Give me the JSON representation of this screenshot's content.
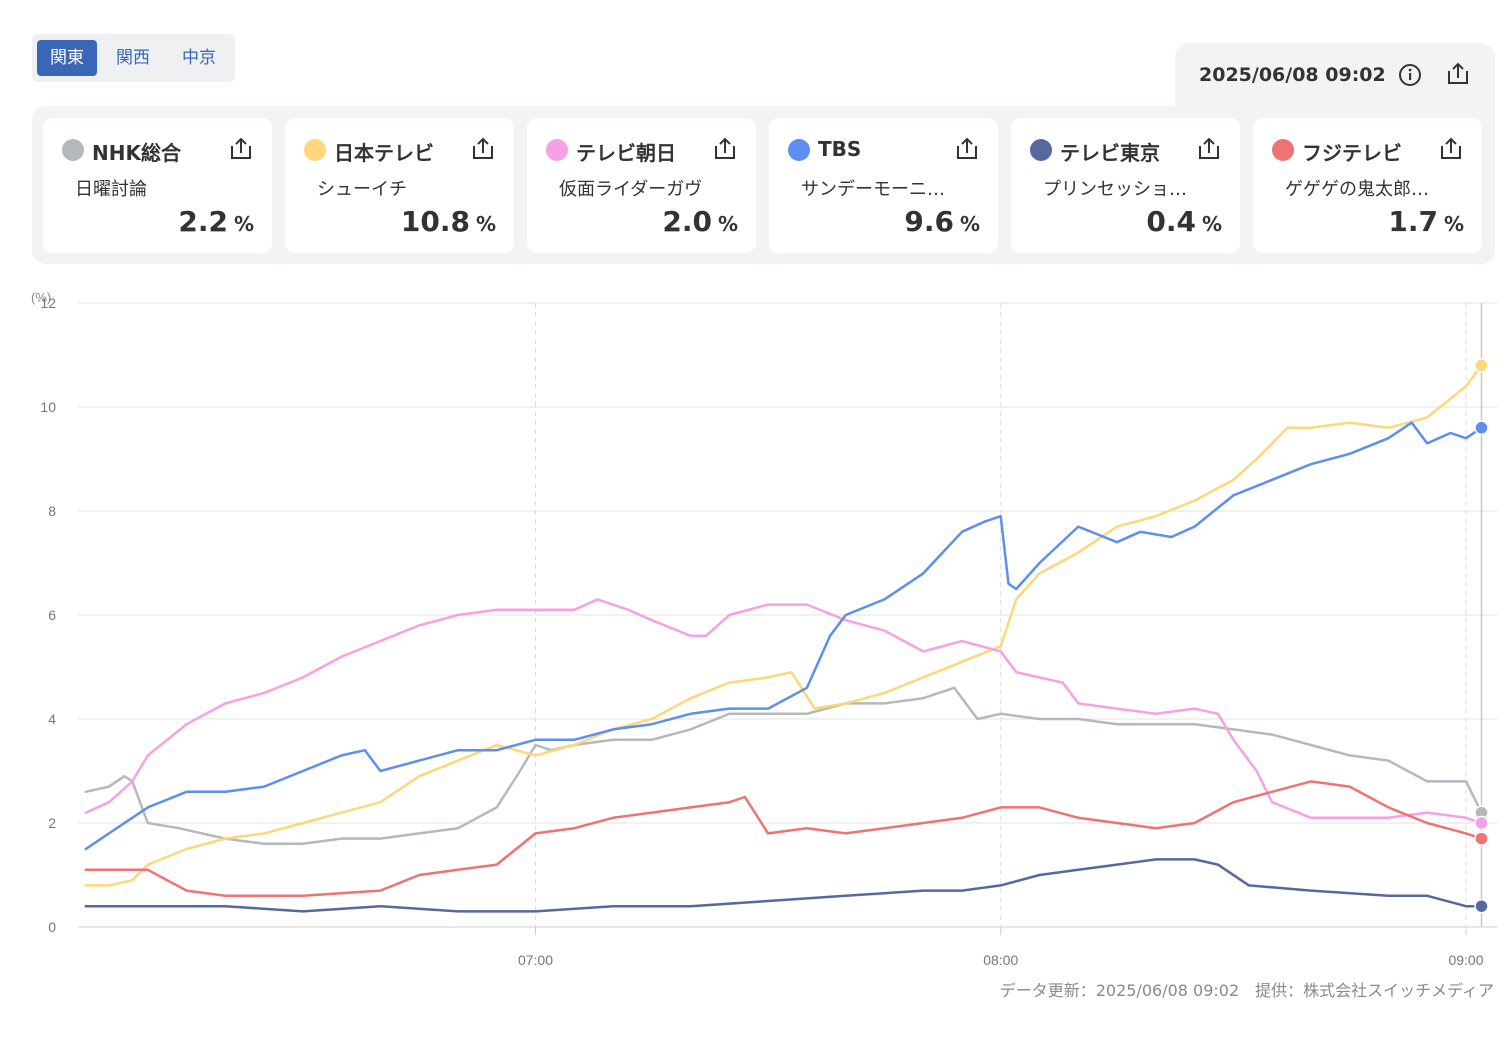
{
  "region_tabs": [
    {
      "label": "関東",
      "active": true
    },
    {
      "label": "関西",
      "active": false
    },
    {
      "label": "中京",
      "active": false
    }
  ],
  "header": {
    "datetime": "2025/06/08 09:02",
    "info_icon": "info-icon",
    "share_icon": "share-icon"
  },
  "channels": [
    {
      "name": "NHK総合",
      "program": "日曜討論",
      "rating": "2.2",
      "unit": "%",
      "color": "#b5b8bd"
    },
    {
      "name": "日本テレビ",
      "program": "シューイチ",
      "rating": "10.8",
      "unit": "%",
      "color": "#fdd77a"
    },
    {
      "name": "テレビ朝日",
      "program": "仮面ライダーガヴ",
      "rating": "2.0",
      "unit": "%",
      "color": "#f7a1e4"
    },
    {
      "name": "TBS",
      "program": "サンデーモーニ…",
      "rating": "9.6",
      "unit": "%",
      "color": "#5d8ef0"
    },
    {
      "name": "テレビ東京",
      "program": "プリンセッショ…",
      "rating": "0.4",
      "unit": "%",
      "color": "#57689f"
    },
    {
      "name": "フジテレビ",
      "program": "ゲゲゲの鬼太郎…",
      "rating": "1.7",
      "unit": "%",
      "color": "#ee7373"
    }
  ],
  "chart_data": {
    "type": "line",
    "ylabel": "(%)",
    "ylim": [
      0,
      12
    ],
    "yticks": [
      "0",
      "2",
      "4",
      "6",
      "8",
      "10",
      "12"
    ],
    "xlim": [
      "06:01",
      "09:04"
    ],
    "xticks": [
      "07:00",
      "08:00",
      "09:00"
    ],
    "grid": true,
    "series": [
      {
        "name": "NHK総合",
        "color": "#b5b8bd",
        "points": [
          [
            "06:02",
            2.6
          ],
          [
            "06:05",
            2.7
          ],
          [
            "06:07",
            2.9
          ],
          [
            "06:08",
            2.8
          ],
          [
            "06:10",
            2.0
          ],
          [
            "06:14",
            1.9
          ],
          [
            "06:20",
            1.7
          ],
          [
            "06:25",
            1.6
          ],
          [
            "06:30",
            1.6
          ],
          [
            "06:35",
            1.7
          ],
          [
            "06:40",
            1.7
          ],
          [
            "06:45",
            1.8
          ],
          [
            "06:50",
            1.9
          ],
          [
            "06:55",
            2.3
          ],
          [
            "06:58",
            3.0
          ],
          [
            "07:00",
            3.5
          ],
          [
            "07:02",
            3.4
          ],
          [
            "07:05",
            3.5
          ],
          [
            "07:10",
            3.6
          ],
          [
            "07:15",
            3.6
          ],
          [
            "07:20",
            3.8
          ],
          [
            "07:25",
            4.1
          ],
          [
            "07:30",
            4.1
          ],
          [
            "07:35",
            4.1
          ],
          [
            "07:40",
            4.3
          ],
          [
            "07:45",
            4.3
          ],
          [
            "07:50",
            4.4
          ],
          [
            "07:54",
            4.6
          ],
          [
            "07:57",
            4.0
          ],
          [
            "08:00",
            4.1
          ],
          [
            "08:05",
            4.0
          ],
          [
            "08:10",
            4.0
          ],
          [
            "08:15",
            3.9
          ],
          [
            "08:20",
            3.9
          ],
          [
            "08:25",
            3.9
          ],
          [
            "08:30",
            3.8
          ],
          [
            "08:35",
            3.7
          ],
          [
            "08:40",
            3.5
          ],
          [
            "08:45",
            3.3
          ],
          [
            "08:50",
            3.2
          ],
          [
            "08:55",
            2.8
          ],
          [
            "09:00",
            2.8
          ],
          [
            "09:02",
            2.2
          ]
        ]
      },
      {
        "name": "日本テレビ",
        "color": "#fdd77a",
        "points": [
          [
            "06:02",
            0.8
          ],
          [
            "06:05",
            0.8
          ],
          [
            "06:08",
            0.9
          ],
          [
            "06:10",
            1.2
          ],
          [
            "06:15",
            1.5
          ],
          [
            "06:20",
            1.7
          ],
          [
            "06:25",
            1.8
          ],
          [
            "06:30",
            2.0
          ],
          [
            "06:35",
            2.2
          ],
          [
            "06:40",
            2.4
          ],
          [
            "06:45",
            2.9
          ],
          [
            "06:50",
            3.2
          ],
          [
            "06:55",
            3.5
          ],
          [
            "07:00",
            3.3
          ],
          [
            "07:05",
            3.5
          ],
          [
            "07:10",
            3.8
          ],
          [
            "07:15",
            4.0
          ],
          [
            "07:20",
            4.4
          ],
          [
            "07:25",
            4.7
          ],
          [
            "07:30",
            4.8
          ],
          [
            "07:33",
            4.9
          ],
          [
            "07:36",
            4.2
          ],
          [
            "07:40",
            4.3
          ],
          [
            "07:45",
            4.5
          ],
          [
            "07:50",
            4.8
          ],
          [
            "07:55",
            5.1
          ],
          [
            "08:00",
            5.4
          ],
          [
            "08:02",
            6.3
          ],
          [
            "08:05",
            6.8
          ],
          [
            "08:10",
            7.2
          ],
          [
            "08:15",
            7.7
          ],
          [
            "08:20",
            7.9
          ],
          [
            "08:25",
            8.2
          ],
          [
            "08:30",
            8.6
          ],
          [
            "08:33",
            9.0
          ],
          [
            "08:37",
            9.6
          ],
          [
            "08:40",
            9.6
          ],
          [
            "08:45",
            9.7
          ],
          [
            "08:50",
            9.6
          ],
          [
            "08:55",
            9.8
          ],
          [
            "09:00",
            10.4
          ],
          [
            "09:02",
            10.8
          ]
        ]
      },
      {
        "name": "テレビ朝日",
        "color": "#f7a1e4",
        "points": [
          [
            "06:02",
            2.2
          ],
          [
            "06:05",
            2.4
          ],
          [
            "06:08",
            2.8
          ],
          [
            "06:10",
            3.3
          ],
          [
            "06:15",
            3.9
          ],
          [
            "06:20",
            4.3
          ],
          [
            "06:25",
            4.5
          ],
          [
            "06:30",
            4.8
          ],
          [
            "06:35",
            5.2
          ],
          [
            "06:40",
            5.5
          ],
          [
            "06:45",
            5.8
          ],
          [
            "06:50",
            6.0
          ],
          [
            "06:55",
            6.1
          ],
          [
            "07:00",
            6.1
          ],
          [
            "07:05",
            6.1
          ],
          [
            "07:08",
            6.3
          ],
          [
            "07:12",
            6.1
          ],
          [
            "07:15",
            5.9
          ],
          [
            "07:20",
            5.6
          ],
          [
            "07:22",
            5.6
          ],
          [
            "07:25",
            6.0
          ],
          [
            "07:30",
            6.2
          ],
          [
            "07:35",
            6.2
          ],
          [
            "07:40",
            5.9
          ],
          [
            "07:45",
            5.7
          ],
          [
            "07:50",
            5.3
          ],
          [
            "07:55",
            5.5
          ],
          [
            "08:00",
            5.3
          ],
          [
            "08:02",
            4.9
          ],
          [
            "08:05",
            4.8
          ],
          [
            "08:08",
            4.7
          ],
          [
            "08:10",
            4.3
          ],
          [
            "08:15",
            4.2
          ],
          [
            "08:20",
            4.1
          ],
          [
            "08:25",
            4.2
          ],
          [
            "08:28",
            4.1
          ],
          [
            "08:30",
            3.6
          ],
          [
            "08:33",
            3.0
          ],
          [
            "08:35",
            2.4
          ],
          [
            "08:40",
            2.1
          ],
          [
            "08:45",
            2.1
          ],
          [
            "08:50",
            2.1
          ],
          [
            "08:55",
            2.2
          ],
          [
            "09:00",
            2.1
          ],
          [
            "09:02",
            2.0
          ]
        ]
      },
      {
        "name": "TBS",
        "color": "#5d8ef0",
        "points": [
          [
            "06:02",
            1.5
          ],
          [
            "06:05",
            1.8
          ],
          [
            "06:08",
            2.1
          ],
          [
            "06:10",
            2.3
          ],
          [
            "06:15",
            2.6
          ],
          [
            "06:20",
            2.6
          ],
          [
            "06:25",
            2.7
          ],
          [
            "06:30",
            3.0
          ],
          [
            "06:35",
            3.3
          ],
          [
            "06:38",
            3.4
          ],
          [
            "06:40",
            3.0
          ],
          [
            "06:45",
            3.2
          ],
          [
            "06:50",
            3.4
          ],
          [
            "06:55",
            3.4
          ],
          [
            "07:00",
            3.6
          ],
          [
            "07:05",
            3.6
          ],
          [
            "07:10",
            3.8
          ],
          [
            "07:15",
            3.9
          ],
          [
            "07:20",
            4.1
          ],
          [
            "07:25",
            4.2
          ],
          [
            "07:30",
            4.2
          ],
          [
            "07:35",
            4.6
          ],
          [
            "07:38",
            5.6
          ],
          [
            "07:40",
            6.0
          ],
          [
            "07:45",
            6.3
          ],
          [
            "07:50",
            6.8
          ],
          [
            "07:55",
            7.6
          ],
          [
            "07:58",
            7.8
          ],
          [
            "08:00",
            7.9
          ],
          [
            "08:01",
            6.6
          ],
          [
            "08:02",
            6.5
          ],
          [
            "08:05",
            7.0
          ],
          [
            "08:10",
            7.7
          ],
          [
            "08:15",
            7.4
          ],
          [
            "08:18",
            7.6
          ],
          [
            "08:22",
            7.5
          ],
          [
            "08:25",
            7.7
          ],
          [
            "08:30",
            8.3
          ],
          [
            "08:35",
            8.6
          ],
          [
            "08:40",
            8.9
          ],
          [
            "08:45",
            9.1
          ],
          [
            "08:50",
            9.4
          ],
          [
            "08:53",
            9.7
          ],
          [
            "08:55",
            9.3
          ],
          [
            "08:58",
            9.5
          ],
          [
            "09:00",
            9.4
          ],
          [
            "09:02",
            9.6
          ]
        ]
      },
      {
        "name": "テレビ東京",
        "color": "#57689f",
        "points": [
          [
            "06:02",
            0.4
          ],
          [
            "06:10",
            0.4
          ],
          [
            "06:20",
            0.4
          ],
          [
            "06:30",
            0.3
          ],
          [
            "06:40",
            0.4
          ],
          [
            "06:50",
            0.3
          ],
          [
            "06:55",
            0.3
          ],
          [
            "07:00",
            0.3
          ],
          [
            "07:10",
            0.4
          ],
          [
            "07:20",
            0.4
          ],
          [
            "07:30",
            0.5
          ],
          [
            "07:40",
            0.6
          ],
          [
            "07:50",
            0.7
          ],
          [
            "07:55",
            0.7
          ],
          [
            "08:00",
            0.8
          ],
          [
            "08:05",
            1.0
          ],
          [
            "08:10",
            1.1
          ],
          [
            "08:15",
            1.2
          ],
          [
            "08:20",
            1.3
          ],
          [
            "08:25",
            1.3
          ],
          [
            "08:28",
            1.2
          ],
          [
            "08:32",
            0.8
          ],
          [
            "08:40",
            0.7
          ],
          [
            "08:50",
            0.6
          ],
          [
            "08:55",
            0.6
          ],
          [
            "09:00",
            0.4
          ],
          [
            "09:02",
            0.4
          ]
        ]
      },
      {
        "name": "フジテレビ",
        "color": "#ee7373",
        "points": [
          [
            "06:02",
            1.1
          ],
          [
            "06:05",
            1.1
          ],
          [
            "06:10",
            1.1
          ],
          [
            "06:15",
            0.7
          ],
          [
            "06:20",
            0.6
          ],
          [
            "06:30",
            0.6
          ],
          [
            "06:40",
            0.7
          ],
          [
            "06:45",
            1.0
          ],
          [
            "06:50",
            1.1
          ],
          [
            "06:55",
            1.2
          ],
          [
            "07:00",
            1.8
          ],
          [
            "07:05",
            1.9
          ],
          [
            "07:10",
            2.1
          ],
          [
            "07:15",
            2.2
          ],
          [
            "07:20",
            2.3
          ],
          [
            "07:25",
            2.4
          ],
          [
            "07:27",
            2.5
          ],
          [
            "07:30",
            1.8
          ],
          [
            "07:35",
            1.9
          ],
          [
            "07:40",
            1.8
          ],
          [
            "07:45",
            1.9
          ],
          [
            "07:50",
            2.0
          ],
          [
            "07:55",
            2.1
          ],
          [
            "08:00",
            2.3
          ],
          [
            "08:05",
            2.3
          ],
          [
            "08:10",
            2.1
          ],
          [
            "08:15",
            2.0
          ],
          [
            "08:20",
            1.9
          ],
          [
            "08:25",
            2.0
          ],
          [
            "08:30",
            2.4
          ],
          [
            "08:35",
            2.6
          ],
          [
            "08:40",
            2.8
          ],
          [
            "08:45",
            2.7
          ],
          [
            "08:50",
            2.3
          ],
          [
            "08:55",
            2.0
          ],
          [
            "09:00",
            1.8
          ],
          [
            "09:02",
            1.7
          ]
        ]
      }
    ]
  },
  "footer": {
    "text": "データ更新：2025/06/08 09:02　提供：株式会社スイッチメディア"
  }
}
